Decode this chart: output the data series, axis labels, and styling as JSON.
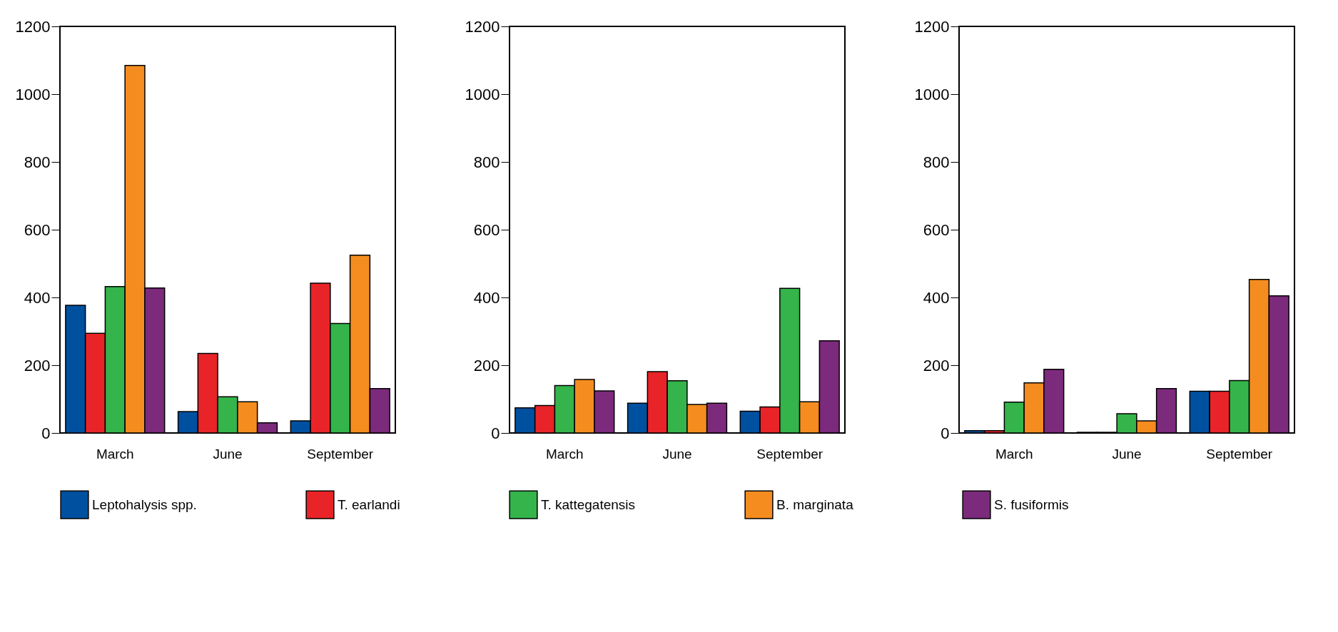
{
  "chart_data": [
    {
      "type": "bar",
      "categories": [
        "March",
        "June",
        "September"
      ],
      "ylim": [
        0,
        1200
      ],
      "yticks": [
        0,
        200,
        400,
        600,
        800,
        1000,
        1200
      ],
      "grid": false,
      "legend": "bottom",
      "series": [
        {
          "name": "Leptohalysis spp.",
          "color": "#0050a0",
          "values": [
            377,
            63,
            36
          ]
        },
        {
          "name": "T. earlandi",
          "color": "#e82428",
          "values": [
            294,
            235,
            442
          ]
        },
        {
          "name": "T. kattegatensis",
          "color": "#34b44a",
          "values": [
            432,
            107,
            323
          ]
        },
        {
          "name": "B. marginata",
          "color": "#f48c20",
          "values": [
            1085,
            92,
            525
          ]
        },
        {
          "name": "S. fusiformis",
          "color": "#7c2a7c",
          "values": [
            428,
            30,
            131
          ]
        }
      ]
    },
    {
      "type": "bar",
      "categories": [
        "March",
        "June",
        "September"
      ],
      "ylim": [
        0,
        1200
      ],
      "yticks": [
        0,
        200,
        400,
        600,
        800,
        1000,
        1200
      ],
      "grid": false,
      "legend": "bottom",
      "series": [
        {
          "name": "Leptohalysis spp.",
          "color": "#0050a0",
          "values": [
            74,
            88,
            64
          ]
        },
        {
          "name": "T. earlandi",
          "color": "#e82428",
          "values": [
            81,
            181,
            77
          ]
        },
        {
          "name": "T. kattegatensis",
          "color": "#34b44a",
          "values": [
            140,
            154,
            427
          ]
        },
        {
          "name": "B. marginata",
          "color": "#f48c20",
          "values": [
            158,
            84,
            92
          ]
        },
        {
          "name": "S. fusiformis",
          "color": "#7c2a7c",
          "values": [
            124,
            88,
            272
          ]
        }
      ]
    },
    {
      "type": "bar",
      "categories": [
        "March",
        "June",
        "September"
      ],
      "ylim": [
        0,
        1200
      ],
      "yticks": [
        0,
        200,
        400,
        600,
        800,
        1000,
        1200
      ],
      "grid": false,
      "legend": "bottom",
      "series": [
        {
          "name": "Leptohalysis spp.",
          "color": "#0050a0",
          "values": [
            7,
            2,
            123
          ]
        },
        {
          "name": "T. earlandi",
          "color": "#e82428",
          "values": [
            7,
            2,
            123
          ]
        },
        {
          "name": "T. kattegatensis",
          "color": "#34b44a",
          "values": [
            91,
            57,
            155
          ]
        },
        {
          "name": "B. marginata",
          "color": "#f48c20",
          "values": [
            148,
            36,
            453
          ]
        },
        {
          "name": "S. fusiformis",
          "color": "#7c2a7c",
          "values": [
            188,
            131,
            405
          ]
        }
      ]
    }
  ]
}
